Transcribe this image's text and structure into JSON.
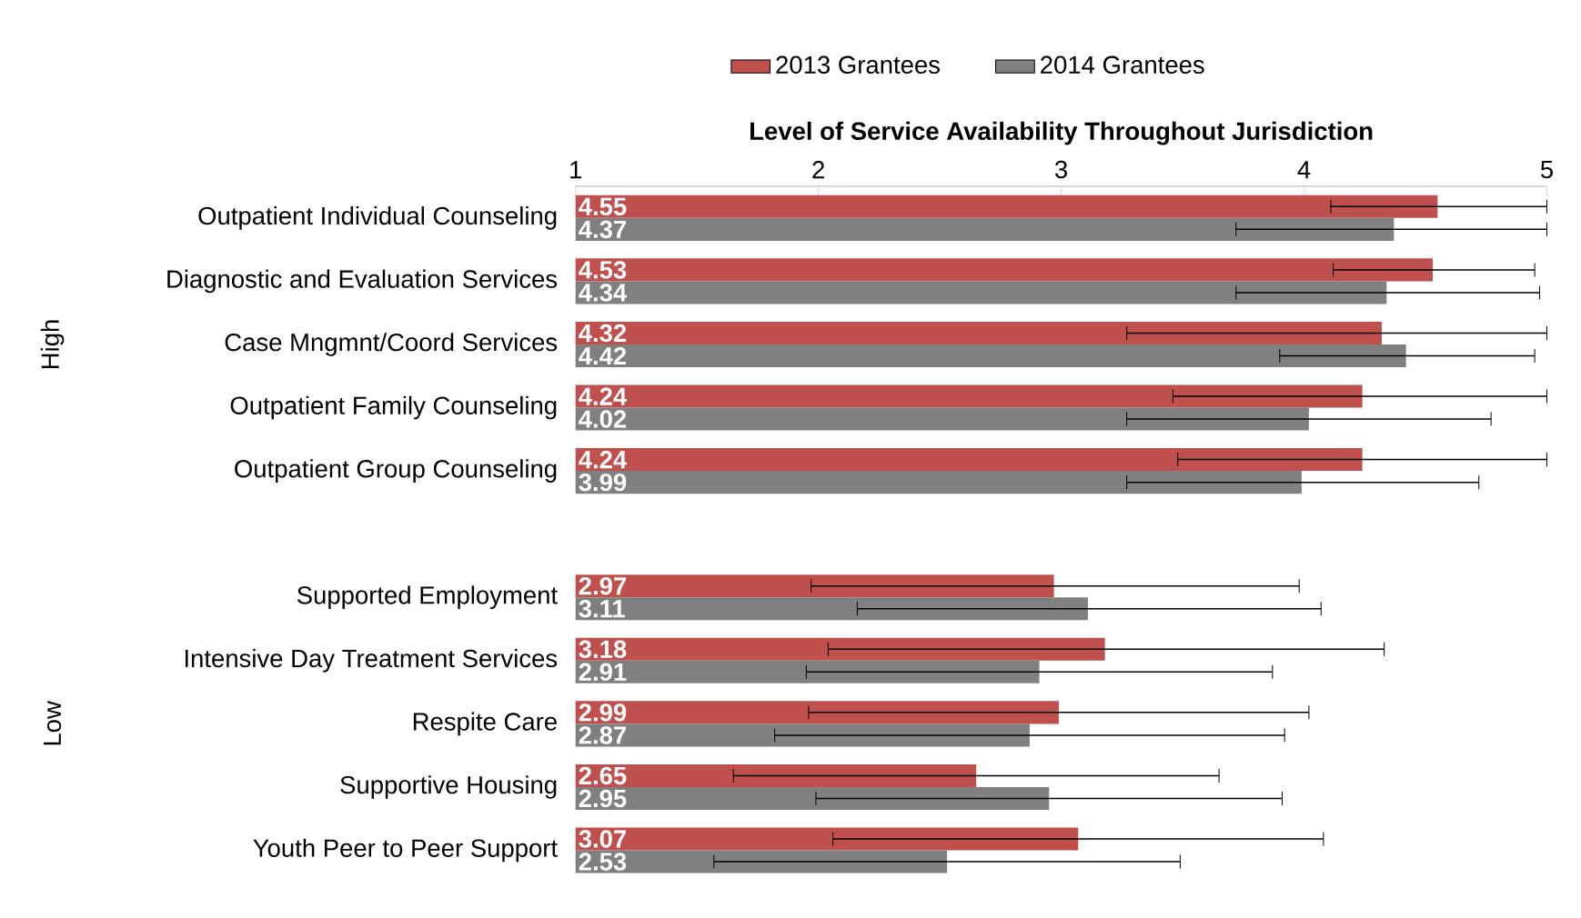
{
  "chart_data": {
    "type": "bar",
    "orientation": "horizontal",
    "xlabel": "Level of Service Availability Throughout Jurisdiction",
    "categories": [
      "Outpatient Individual Counseling",
      "Diagnostic and Evaluation Services",
      "Case Mngmnt/Coord Services",
      "Outpatient Family Counseling",
      "Outpatient Group Counseling",
      null,
      "Supported Employment",
      "Intensive Day Treatment Services",
      "Respite Care",
      "Supportive Housing",
      "Youth Peer to Peer Support"
    ],
    "series": [
      {
        "name": "2013 Grantees",
        "color": "#c0504d",
        "values": [
          4.55,
          4.53,
          4.32,
          4.24,
          4.24,
          null,
          2.97,
          3.18,
          2.99,
          2.65,
          3.07
        ],
        "errors": [
          [
            4.11,
            5.0
          ],
          [
            4.12,
            4.95
          ],
          [
            3.27,
            5.0
          ],
          [
            3.46,
            5.0
          ],
          [
            3.48,
            5.0
          ],
          null,
          [
            1.97,
            3.98
          ],
          [
            2.04,
            4.33
          ],
          [
            1.96,
            4.02
          ],
          [
            1.65,
            3.65
          ],
          [
            2.06,
            4.08
          ]
        ]
      },
      {
        "name": "2014 Grantees",
        "color": "#808080",
        "values": [
          4.37,
          4.34,
          4.42,
          4.02,
          3.99,
          null,
          3.11,
          2.91,
          2.87,
          2.95,
          2.53
        ],
        "errors": [
          [
            3.72,
            5.0
          ],
          [
            3.72,
            4.97
          ],
          [
            3.9,
            4.95
          ],
          [
            3.27,
            4.77
          ],
          [
            3.27,
            4.72
          ],
          null,
          [
            2.16,
            4.07
          ],
          [
            1.95,
            3.87
          ],
          [
            1.82,
            3.92
          ],
          [
            1.99,
            3.91
          ],
          [
            1.57,
            3.49
          ]
        ]
      }
    ],
    "xlim": [
      1,
      5
    ],
    "xticks": [
      1,
      2,
      3,
      4,
      5
    ],
    "data_labels": true,
    "legend": "top",
    "grid": false,
    "annotations": [
      "High",
      "Low"
    ]
  }
}
